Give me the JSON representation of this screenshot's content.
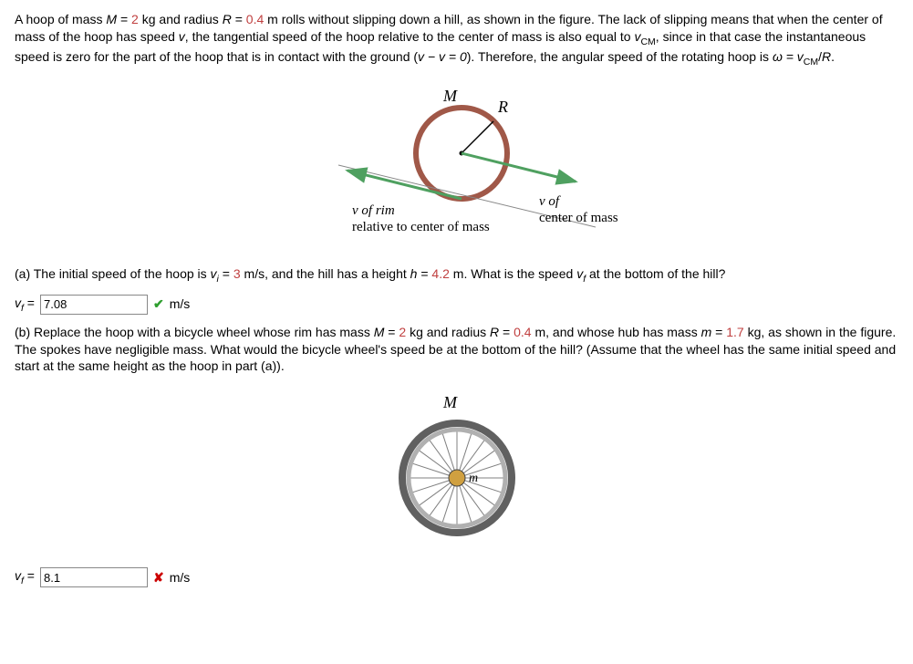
{
  "intro": {
    "M_prefix": "A hoop of mass ",
    "M_sym": "M",
    "M_eq": " = ",
    "M_val": "2",
    "M_unit": " kg and radius ",
    "R_sym": "R",
    "R_eq": " = ",
    "R_val": "0.4",
    "R_rest": " m rolls without slipping down a hill, as shown in the figure. The lack of slipping means that when the center of mass of the hoop has speed ",
    "v_sym1": "v",
    "rest2": ", the tangential speed of the hoop relative to the center of mass is also equal to ",
    "vcm1": "v",
    "vcm1_sub": "CM",
    "rest3": ", since in that case the instantaneous speed is zero for the part of the hoop that is in contact with the ground (",
    "vminusv": "v − v = 0",
    "rest4": "). Therefore, the angular speed of the rotating hoop is ",
    "omega": "ω = ",
    "vcm2": "v",
    "vcm2_sub": "CM",
    "over": "/",
    "R2": "R",
    "period": "."
  },
  "fig1": {
    "M_label": "M",
    "R_label": "R",
    "left_label_l1": "v of rim",
    "left_label_l2": "relative to center of mass",
    "right_label_l1": "v of",
    "right_label_l2": "center of mass",
    "hoop_color": "#a05848",
    "arrow_color": "#4fa060"
  },
  "partA": {
    "lead": "(a) The initial speed of the hoop is ",
    "vi_sym": "v",
    "vi_sub": "i",
    "vi_eq": " = ",
    "vi_val": "3",
    "vi_unit": " m/s, and the hill has a height ",
    "h_sym": "h",
    "h_eq": " = ",
    "h_val": "4.2",
    "h_rest": " m. What is the speed ",
    "vf_sym": "v",
    "vf_sub": "f",
    "tail": " at the bottom of the hill?",
    "ans_label_sym": "v",
    "ans_label_sub": "f",
    "ans_eq": " = ",
    "value": "7.08",
    "unit": "m/s",
    "correct": true
  },
  "partB": {
    "lead": "(b) Replace the hoop with a bicycle wheel whose rim has mass ",
    "M_sym": "M",
    "M_eq": " = ",
    "M_val": "2",
    "M_unit": " kg and radius ",
    "R_sym": "R",
    "R_eq": " = ",
    "R_val": "0.4",
    "R_unit": " m, and whose hub has mass ",
    "m_sym": "m",
    "m_eq": " = ",
    "m_val": "1.7",
    "tail": " kg, as shown in the figure. The spokes have negligible mass. What would the bicycle wheel's speed be at the bottom of the hill? (Assume that the wheel has the same initial speed and start at the same height as the hoop in part (a)).",
    "ans_label_sym": "v",
    "ans_label_sub": "f",
    "ans_eq": " = ",
    "value": "8.1",
    "unit": "m/s",
    "correct": false
  },
  "fig2": {
    "M_label": "M",
    "m_label": "m",
    "rim_outer": "#606060",
    "rim_inner": "#b0b0b0",
    "spoke_color": "#808080",
    "hub_fill": "#d0a040",
    "spoke_count": 20
  }
}
